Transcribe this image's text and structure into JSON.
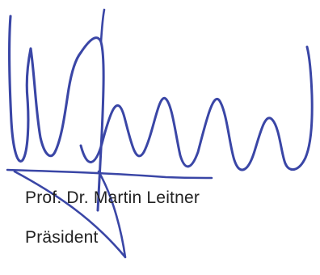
{
  "signature": {
    "name": "Prof. Dr. Martin Leitner",
    "title": "Präsident"
  },
  "colors": {
    "ink": "#3a46a6",
    "text": "#222222",
    "background": "#ffffff"
  }
}
